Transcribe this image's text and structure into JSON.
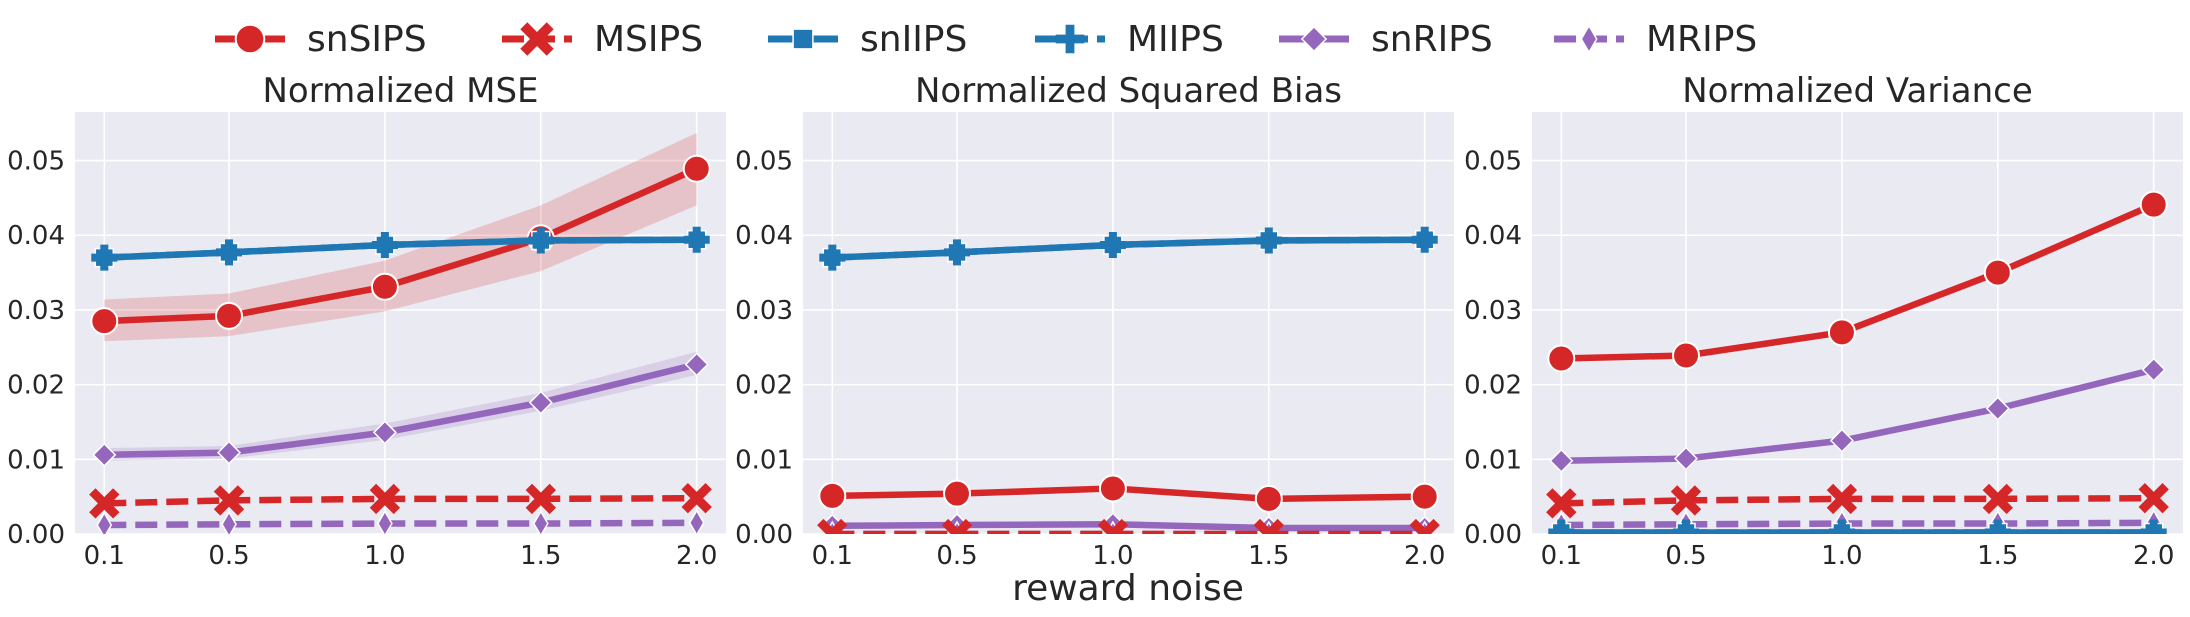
{
  "legend": [
    {
      "name": "snSIPS",
      "color": "#d62728",
      "marker": "circle",
      "dashed": false
    },
    {
      "name": "MSIPS",
      "color": "#d62728",
      "marker": "x",
      "dashed": true
    },
    {
      "name": "snIIPS",
      "color": "#1f77b4",
      "marker": "square",
      "dashed": false
    },
    {
      "name": "MIIPS",
      "color": "#1f77b4",
      "marker": "plus",
      "dashed": true
    },
    {
      "name": "snRIPS",
      "color": "#9467bd",
      "marker": "diamond",
      "dashed": false
    },
    {
      "name": "MRIPS",
      "color": "#9467bd",
      "marker": "thin_diamond",
      "dashed": true
    }
  ],
  "xlabel": "reward noise",
  "chart_data": [
    {
      "type": "line",
      "title": "Normalized MSE",
      "x": [
        0.1,
        0.5,
        1.0,
        1.5,
        2.0
      ],
      "x_tick_labels": [
        "0.1",
        "0.5",
        "1.0",
        "1.5",
        "2.0"
      ],
      "ylim": [
        0,
        0.0565
      ],
      "y_ticks": [
        0.0,
        0.01,
        0.02,
        0.03,
        0.04,
        0.05
      ],
      "y_tick_labels": [
        "0.00",
        "0.01",
        "0.02",
        "0.03",
        "0.04",
        "0.05"
      ],
      "grid": true,
      "series": [
        {
          "name": "snSIPS",
          "values": [
            0.0285,
            0.0292,
            0.0331,
            0.0396,
            0.0489
          ],
          "ci_low": [
            0.0258,
            0.0265,
            0.0298,
            0.0352,
            0.044
          ],
          "ci_high": [
            0.0314,
            0.0322,
            0.0366,
            0.044,
            0.0537
          ]
        },
        {
          "name": "MSIPS",
          "values": [
            0.0041,
            0.0045,
            0.0047,
            0.0047,
            0.0048
          ]
        },
        {
          "name": "snIIPS",
          "values": [
            0.037,
            0.0377,
            0.0387,
            0.0393,
            0.0394
          ]
        },
        {
          "name": "MIIPS",
          "values": [
            0.037,
            0.0377,
            0.0387,
            0.0393,
            0.0394
          ]
        },
        {
          "name": "snRIPS",
          "values": [
            0.0106,
            0.0109,
            0.0136,
            0.0176,
            0.0227
          ],
          "ci_low": [
            0.0098,
            0.0101,
            0.0126,
            0.0165,
            0.0213
          ],
          "ci_high": [
            0.0115,
            0.0118,
            0.0148,
            0.0189,
            0.0244
          ]
        },
        {
          "name": "MRIPS",
          "values": [
            0.0012,
            0.0013,
            0.0014,
            0.0014,
            0.0015
          ]
        }
      ]
    },
    {
      "type": "line",
      "title": "Normalized Squared Bias",
      "x": [
        0.1,
        0.5,
        1.0,
        1.5,
        2.0
      ],
      "x_tick_labels": [
        "0.1",
        "0.5",
        "1.0",
        "1.5",
        "2.0"
      ],
      "ylim": [
        0,
        0.0565
      ],
      "y_ticks": [
        0.0,
        0.01,
        0.02,
        0.03,
        0.04,
        0.05
      ],
      "y_tick_labels": [
        "0.00",
        "0.01",
        "0.02",
        "0.03",
        "0.04",
        "0.05"
      ],
      "grid": true,
      "series": [
        {
          "name": "snSIPS",
          "values": [
            0.0051,
            0.0054,
            0.0061,
            0.0047,
            0.005
          ]
        },
        {
          "name": "MSIPS",
          "values": [
            0.0,
            0.0,
            0.0,
            0.0,
            0.0
          ]
        },
        {
          "name": "snIIPS",
          "values": [
            0.037,
            0.0377,
            0.0387,
            0.0393,
            0.0394
          ]
        },
        {
          "name": "MIIPS",
          "values": [
            0.037,
            0.0377,
            0.0387,
            0.0393,
            0.0394
          ]
        },
        {
          "name": "snRIPS",
          "values": [
            0.0011,
            0.0012,
            0.0013,
            0.0008,
            0.0008
          ]
        },
        {
          "name": "MRIPS",
          "values": [
            0.0,
            0.0,
            0.0,
            0.0,
            0.0
          ]
        }
      ]
    },
    {
      "type": "line",
      "title": "Normalized Variance",
      "x": [
        0.1,
        0.5,
        1.0,
        1.5,
        2.0
      ],
      "x_tick_labels": [
        "0.1",
        "0.5",
        "1.0",
        "1.5",
        "2.0"
      ],
      "ylim": [
        0,
        0.0565
      ],
      "y_ticks": [
        0.0,
        0.01,
        0.02,
        0.03,
        0.04,
        0.05
      ],
      "y_tick_labels": [
        "0.00",
        "0.01",
        "0.02",
        "0.03",
        "0.04",
        "0.05"
      ],
      "grid": true,
      "series": [
        {
          "name": "snSIPS",
          "values": [
            0.0235,
            0.0239,
            0.027,
            0.035,
            0.0441
          ]
        },
        {
          "name": "MSIPS",
          "values": [
            0.0041,
            0.0045,
            0.0047,
            0.0047,
            0.0048
          ]
        },
        {
          "name": "snIIPS",
          "values": [
            0.0002,
            0.0002,
            0.0002,
            0.0002,
            0.0002
          ]
        },
        {
          "name": "MIIPS",
          "values": [
            0.0002,
            0.0002,
            0.0002,
            0.0002,
            0.0002
          ]
        },
        {
          "name": "snRIPS",
          "values": [
            0.0098,
            0.0101,
            0.0125,
            0.0168,
            0.022
          ]
        },
        {
          "name": "MRIPS",
          "values": [
            0.0012,
            0.0013,
            0.0014,
            0.0014,
            0.0015
          ]
        }
      ]
    }
  ]
}
